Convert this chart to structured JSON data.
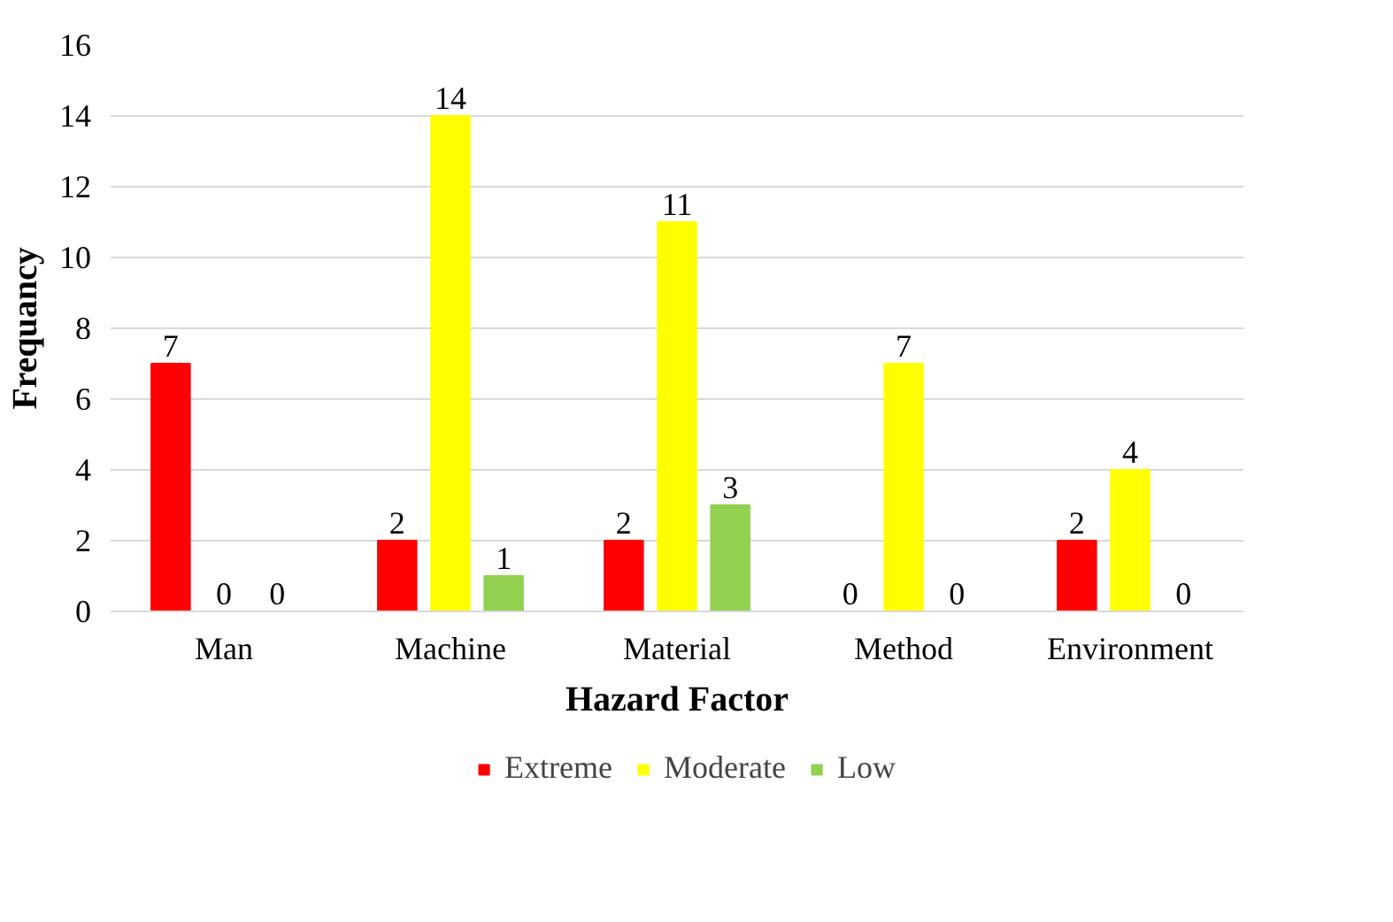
{
  "chart_data": {
    "type": "bar",
    "xlabel": "Hazard Factor",
    "ylabel": "Frequancy",
    "categories": [
      "Man",
      "Machine",
      "Material",
      "Method",
      "Environment"
    ],
    "series": [
      {
        "name": "Extreme",
        "color": "#ff0000",
        "values": [
          7,
          2,
          2,
          0,
          2
        ]
      },
      {
        "name": "Moderate",
        "color": "#ffff00",
        "values": [
          0,
          14,
          11,
          7,
          4
        ]
      },
      {
        "name": "Low",
        "color": "#92d050",
        "values": [
          0,
          1,
          3,
          0,
          0
        ]
      }
    ],
    "ylim": [
      0,
      16
    ],
    "yticks": [
      0,
      2,
      4,
      6,
      8,
      10,
      12,
      14,
      16
    ],
    "grid": "y",
    "data_labels": true,
    "legend": "bottom"
  }
}
